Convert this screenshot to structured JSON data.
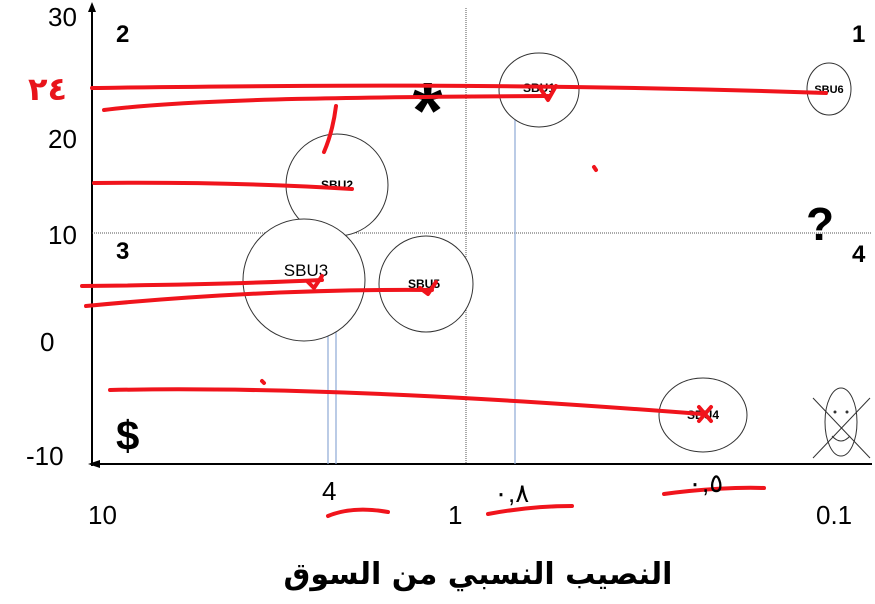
{
  "title": "النصيب النسبي من السوق",
  "y_ticks": [
    "30",
    "20",
    "10",
    "0",
    "-10"
  ],
  "x_ticks": [
    "10",
    "1",
    "0.1"
  ],
  "quadrants": {
    "q1": "1",
    "q2": "2",
    "q3": "3",
    "q4": "4"
  },
  "symbols": {
    "star": "*",
    "question": "?",
    "dollar": "$"
  },
  "sbus": [
    {
      "label": "SBU1",
      "relative_share": 0.8,
      "growth": 24
    },
    {
      "label": "SBU2",
      "relative_share": 4,
      "growth": 15
    },
    {
      "label": "SBU3",
      "relative_share": 4.5,
      "growth": 5.5
    },
    {
      "label": "SBU5",
      "relative_share": 2,
      "growth": 5
    },
    {
      "label": "SBU4",
      "relative_share": 0.2,
      "growth": -6
    },
    {
      "label": "SBU6",
      "relative_share": 0.1,
      "growth": 24
    }
  ],
  "handwritten": {
    "y_value": "٢٤",
    "x_four": "4",
    "x_08": "٠,٨",
    "x_05": "٠,٥"
  },
  "colors": {
    "ink": "#f0141c",
    "guide": "#8ea9d6",
    "axis": "#000000",
    "gridline": "#555555"
  }
}
